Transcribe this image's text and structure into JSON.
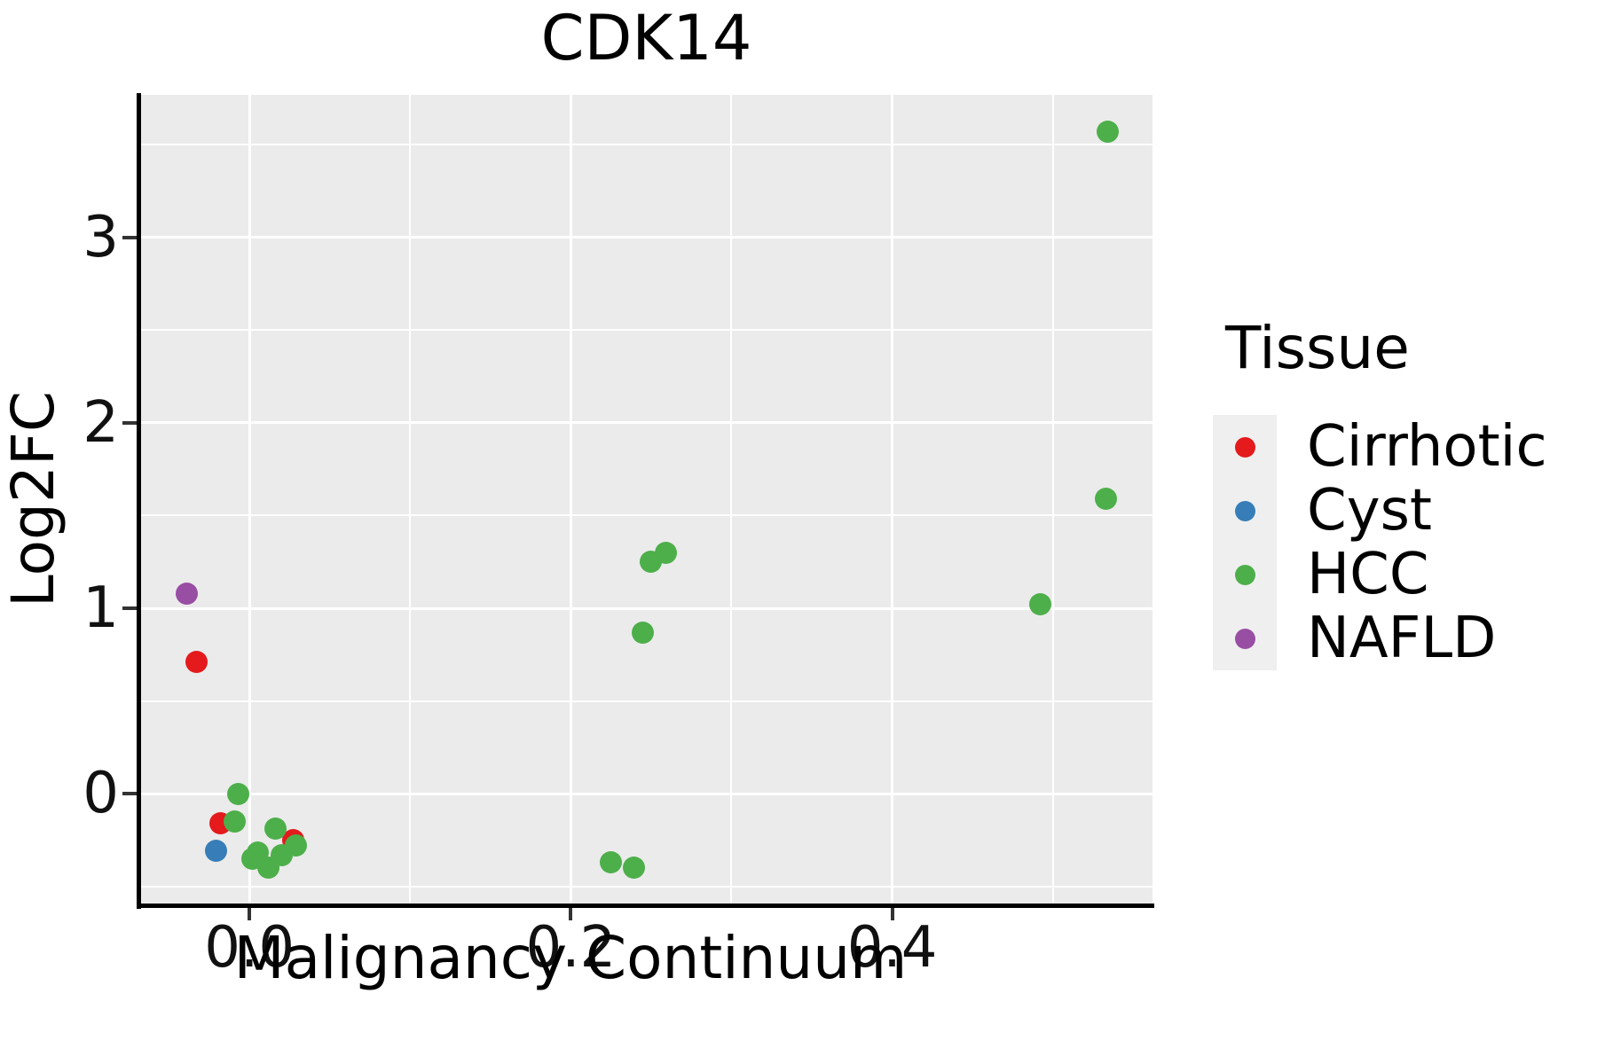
{
  "title": "CDK14",
  "colors": {
    "panel_bg": "#EBEBEB",
    "grid": "#FFFFFF",
    "axis_line": "#000000",
    "tick_mark": "#333333",
    "legend_key_bg": "#EFEFEF",
    "cirrhotic": "#E41A1C",
    "cyst": "#377EB8",
    "hcc": "#4DAF4A",
    "nafld": "#984EA3"
  },
  "chart_data": {
    "type": "scatter",
    "title": "CDK14",
    "xlabel": "Malignancy Continuum",
    "ylabel": "Log2FC",
    "legend_title": "Tissue",
    "legend_position": "right",
    "grid": true,
    "xlim": [
      -0.068,
      0.562
    ],
    "ylim": [
      -0.593,
      3.77
    ],
    "x_ticks": [
      {
        "value": 0.0,
        "label": "0.0"
      },
      {
        "value": 0.2,
        "label": "0.2"
      },
      {
        "value": 0.4,
        "label": "0.4"
      }
    ],
    "y_ticks": [
      {
        "value": 0,
        "label": "0"
      },
      {
        "value": 1,
        "label": "1"
      },
      {
        "value": 2,
        "label": "2"
      },
      {
        "value": 3,
        "label": "3"
      }
    ],
    "x_minor": [
      0.1,
      0.3,
      0.5
    ],
    "y_minor": [
      -0.5,
      0.5,
      1.5,
      2.5,
      3.5
    ],
    "series": [
      {
        "name": "Cirrhotic",
        "color": "#E41A1C",
        "points": [
          [
            -0.033,
            0.71
          ],
          [
            -0.018,
            -0.16
          ],
          [
            0.027,
            -0.25
          ]
        ]
      },
      {
        "name": "Cyst",
        "color": "#377EB8",
        "points": [
          [
            -0.021,
            -0.31
          ]
        ]
      },
      {
        "name": "HCC",
        "color": "#4DAF4A",
        "points": [
          [
            -0.007,
            0.0
          ],
          [
            -0.009,
            -0.15
          ],
          [
            0.016,
            -0.19
          ],
          [
            0.005,
            -0.32
          ],
          [
            0.029,
            -0.28
          ],
          [
            0.012,
            -0.4
          ],
          [
            0.02,
            -0.33
          ],
          [
            0.002,
            -0.35
          ],
          [
            0.225,
            -0.37
          ],
          [
            0.239,
            -0.4
          ],
          [
            0.25,
            1.25
          ],
          [
            0.259,
            1.3
          ],
          [
            0.245,
            0.87
          ],
          [
            0.492,
            1.02
          ],
          [
            0.533,
            1.59
          ],
          [
            0.534,
            3.57
          ]
        ]
      },
      {
        "name": "NAFLD",
        "color": "#984EA3",
        "points": [
          [
            -0.039,
            1.08
          ]
        ]
      }
    ]
  }
}
